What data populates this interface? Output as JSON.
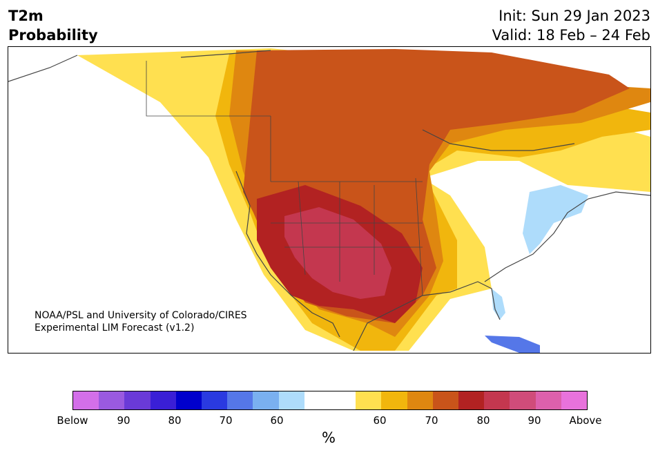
{
  "header": {
    "title_line1": "T2m",
    "title_line2": "Probability",
    "init": "Init: Sun 29 Jan 2023",
    "valid": "Valid: 18 Feb – 24 Feb"
  },
  "map": {
    "credit_line1": "NOAA/PSL and University of Colorado/CIRES",
    "credit_line2": "Experimental LIM Forecast (v1.2)"
  },
  "colorbar": {
    "unit": "%",
    "ticks": [
      "Below",
      "90",
      "80",
      "70",
      "60",
      "60",
      "70",
      "80",
      "90",
      "Above"
    ],
    "colors": [
      "#d36fe9",
      "#9a5ae0",
      "#6a3ad8",
      "#3a1fd6",
      "#0000cc",
      "#2a3ae0",
      "#5577e8",
      "#7ab0f0",
      "#aedcfb",
      "#ffffff",
      "#ffe050",
      "#f1b60d",
      "#df8710",
      "#c9541a",
      "#b22222",
      "#c4374f",
      "#d04c7a",
      "#dd60ac",
      "#e872dc"
    ]
  },
  "colors": {
    "above_60": "#ffe050",
    "above_70": "#df8710",
    "above_80": "#b22222",
    "above_90": "#c4374f",
    "below_60": "#aedcfb",
    "below_70": "#5577e8"
  }
}
